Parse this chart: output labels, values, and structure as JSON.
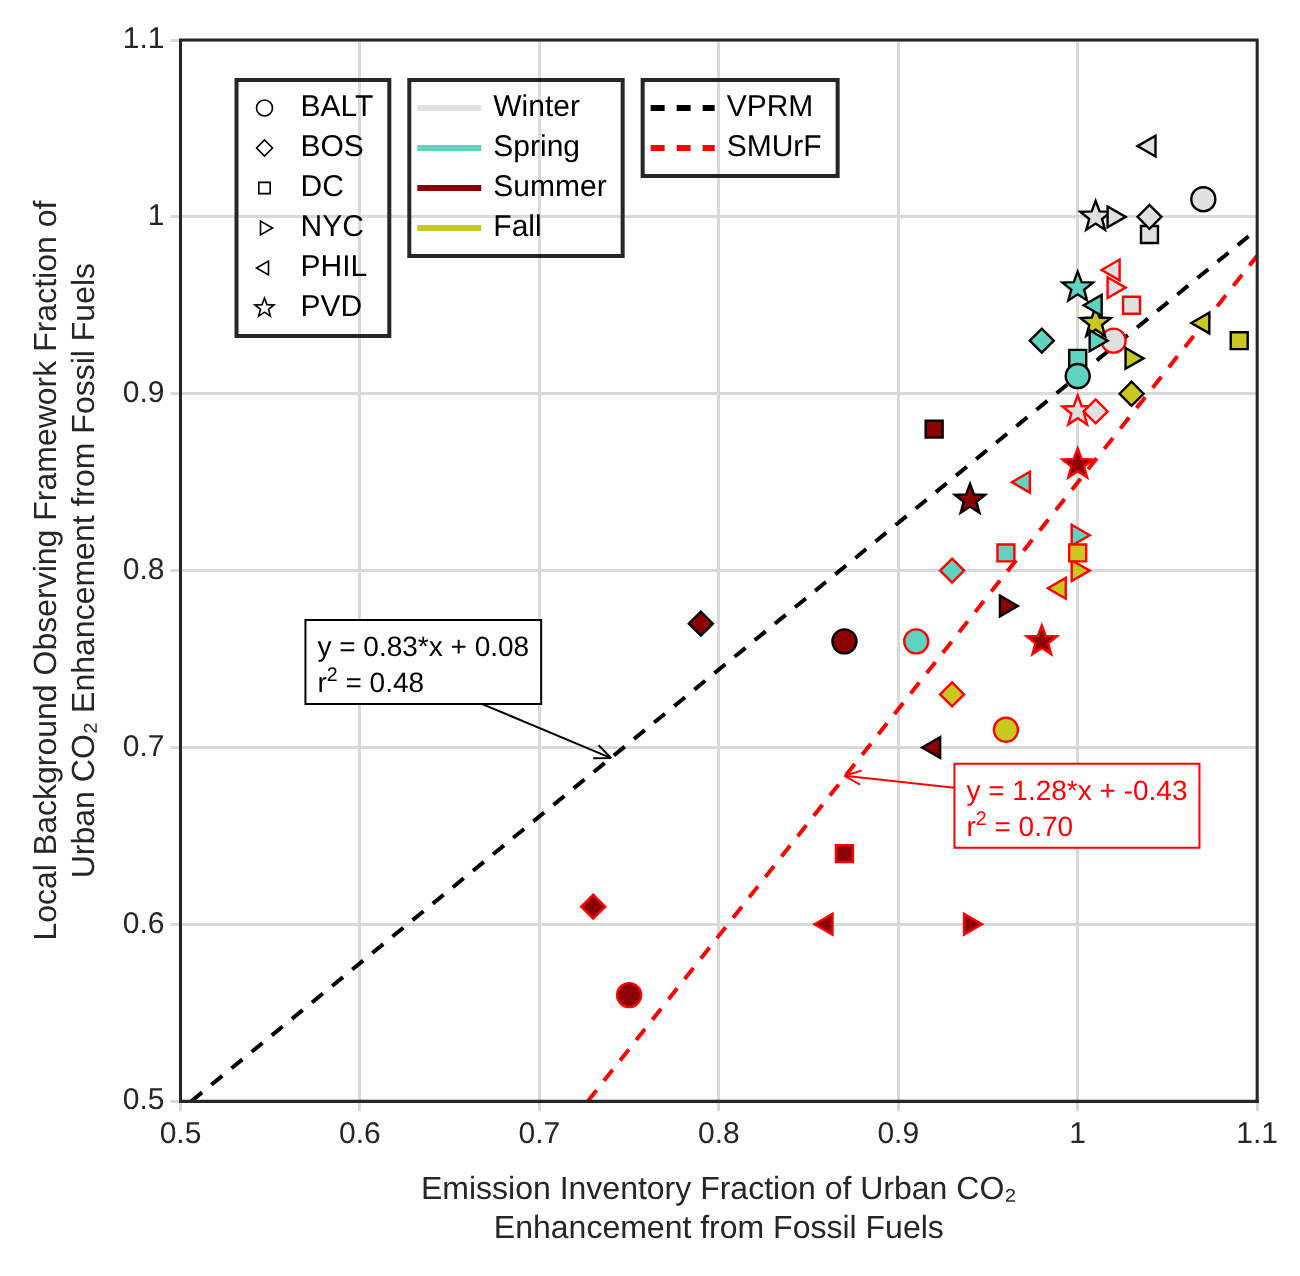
{
  "chart_data": {
    "type": "scatter",
    "xlabel": "Emission Inventory Fraction of Urban CO₂ Enhancement from Fossil Fuels",
    "ylabel": "Local Background Observing Framework Fraction of Urban CO₂ Enhancement from Fossil Fuels",
    "xlim": [
      0.5,
      1.1
    ],
    "xticks": [
      0.5,
      0.6,
      0.7,
      0.8,
      0.9,
      1,
      1.1
    ],
    "ylim": [
      0.5,
      1.1
    ],
    "yticks": [
      0.5,
      0.6,
      0.7,
      0.8,
      0.9,
      1,
      1.1
    ],
    "grid": true,
    "legend": "top left",
    "series": [
      {
        "name": "BALT",
        "type": "scatter",
        "marker": "circle",
        "color": "#000000"
      },
      {
        "name": "BOS",
        "type": "scatter",
        "marker": "diamond",
        "color": "#000000"
      },
      {
        "name": "DC",
        "type": "scatter",
        "marker": "square",
        "color": "#000000"
      },
      {
        "name": "NYC",
        "type": "scatter",
        "marker": "triangle-right",
        "color": "#000000"
      },
      {
        "name": "PHIL",
        "type": "scatter",
        "marker": "triangle-left",
        "color": "#000000"
      },
      {
        "name": "PVD",
        "type": "scatter",
        "marker": "star",
        "color": "#000000"
      },
      {
        "name": "Winter",
        "type": "line",
        "color": "#e0e0e0"
      },
      {
        "name": "Spring",
        "type": "line",
        "color": "#5fd3c0"
      },
      {
        "name": "Summer",
        "type": "line",
        "color": "#8b0000"
      },
      {
        "name": "Fall",
        "type": "line",
        "color": "#c8c81e"
      },
      {
        "name": "VPRM",
        "type": "line",
        "line_style": "dashed",
        "color": "#000000",
        "x": [
          0.506,
          1.1
        ],
        "values": [
          0.5,
          0.993
        ]
      },
      {
        "name": "SMUrF",
        "type": "line",
        "line_style": "dashed",
        "color": "#ff0000",
        "x": [
          0.727,
          1.1
        ],
        "values": [
          0.5,
          0.978
        ]
      },
      {
        "type": "scatter",
        "marker": "circle",
        "color": "#000000",
        "colors": [
          "#e0e0e0",
          "#5fd3c0",
          "#8b0000"
        ],
        "x": [
          1.07,
          1.0,
          0.87
        ],
        "values": [
          1.01,
          0.91,
          0.76
        ]
      },
      {
        "type": "scatter",
        "marker": "diamond",
        "color": "#000000",
        "colors": [
          "#e0e0e0",
          "#5fd3c0",
          "#8b0000",
          "#c8c81e"
        ],
        "x": [
          1.04,
          0.98,
          0.79,
          1.03
        ],
        "values": [
          1.0,
          0.93,
          0.77,
          0.9
        ]
      },
      {
        "type": "scatter",
        "marker": "square",
        "color": "#000000",
        "colors": [
          "#e0e0e0",
          "#5fd3c0",
          "#8b0000",
          "#c8c81e"
        ],
        "x": [
          1.04,
          1.0,
          0.92,
          1.09
        ],
        "values": [
          0.99,
          0.92,
          0.88,
          0.93
        ]
      },
      {
        "type": "scatter",
        "marker": "triangle-right",
        "color": "#000000",
        "colors": [
          "#e0e0e0",
          "#5fd3c0",
          "#8b0000",
          "#c8c81e"
        ],
        "x": [
          1.02,
          1.01,
          0.96,
          1.03
        ],
        "values": [
          1.0,
          0.93,
          0.78,
          0.92
        ]
      },
      {
        "type": "scatter",
        "marker": "triangle-left",
        "color": "#000000",
        "colors": [
          "#e0e0e0",
          "#5fd3c0",
          "#8b0000",
          "#c8c81e"
        ],
        "x": [
          1.04,
          1.01,
          0.92,
          1.07
        ],
        "values": [
          1.04,
          0.95,
          0.7,
          0.94
        ]
      },
      {
        "type": "scatter",
        "marker": "star",
        "color": "#000000",
        "colors": [
          "#e0e0e0",
          "#5fd3c0",
          "#8b0000",
          "#c8c81e"
        ],
        "x": [
          1.01,
          1.0,
          0.94,
          1.01
        ],
        "values": [
          1.0,
          0.96,
          0.84,
          0.94
        ]
      },
      {
        "type": "scatter",
        "marker": "circle",
        "color": "#ff0000",
        "colors": [
          "#e0e0e0",
          "#5fd3c0",
          "#8b0000",
          "#c8c81e"
        ],
        "x": [
          1.02,
          0.91,
          0.75,
          0.96
        ],
        "values": [
          0.93,
          0.76,
          0.56,
          0.71
        ]
      },
      {
        "type": "scatter",
        "marker": "diamond",
        "color": "#ff0000",
        "colors": [
          "#e0e0e0",
          "#5fd3c0",
          "#8b0000",
          "#c8c81e"
        ],
        "x": [
          1.01,
          0.93,
          0.73,
          0.93
        ],
        "values": [
          0.89,
          0.8,
          0.61,
          0.73
        ]
      },
      {
        "type": "scatter",
        "marker": "square",
        "color": "#ff0000",
        "colors": [
          "#e0e0e0",
          "#5fd3c0",
          "#8b0000",
          "#c8c81e"
        ],
        "x": [
          1.03,
          0.96,
          0.87,
          1.0
        ],
        "values": [
          0.95,
          0.81,
          0.64,
          0.81
        ]
      },
      {
        "type": "scatter",
        "marker": "triangle-right",
        "color": "#ff0000",
        "colors": [
          "#e0e0e0",
          "#5fd3c0",
          "#8b0000",
          "#c8c81e"
        ],
        "x": [
          1.02,
          1.0,
          0.94,
          1.0
        ],
        "values": [
          0.96,
          0.82,
          0.6,
          0.8
        ]
      },
      {
        "type": "scatter",
        "marker": "triangle-left",
        "color": "#ff0000",
        "colors": [
          "#e0e0e0",
          "#5fd3c0",
          "#8b0000",
          "#c8c81e"
        ],
        "x": [
          1.02,
          0.97,
          0.86,
          0.99
        ],
        "values": [
          0.97,
          0.85,
          0.6,
          0.79
        ]
      },
      {
        "type": "scatter",
        "marker": "star",
        "color": "#ff0000",
        "colors": [
          "#e0e0e0",
          "#8b0000",
          "#8b0000"
        ],
        "x": [
          1.0,
          1.0,
          0.98
        ],
        "values": [
          0.89,
          0.86,
          0.76
        ]
      }
    ],
    "annotations": [
      {
        "text": "y = 0.83*x + 0.08\nr$^{2}$ = 0.48",
        "x": 0.74,
        "y": 0.694
      },
      {
        "text": "y = 1.28*x + -0.43\nr$^{2}$ = 0.70",
        "x": 0.87,
        "y": 0.684
      }
    ]
  }
}
